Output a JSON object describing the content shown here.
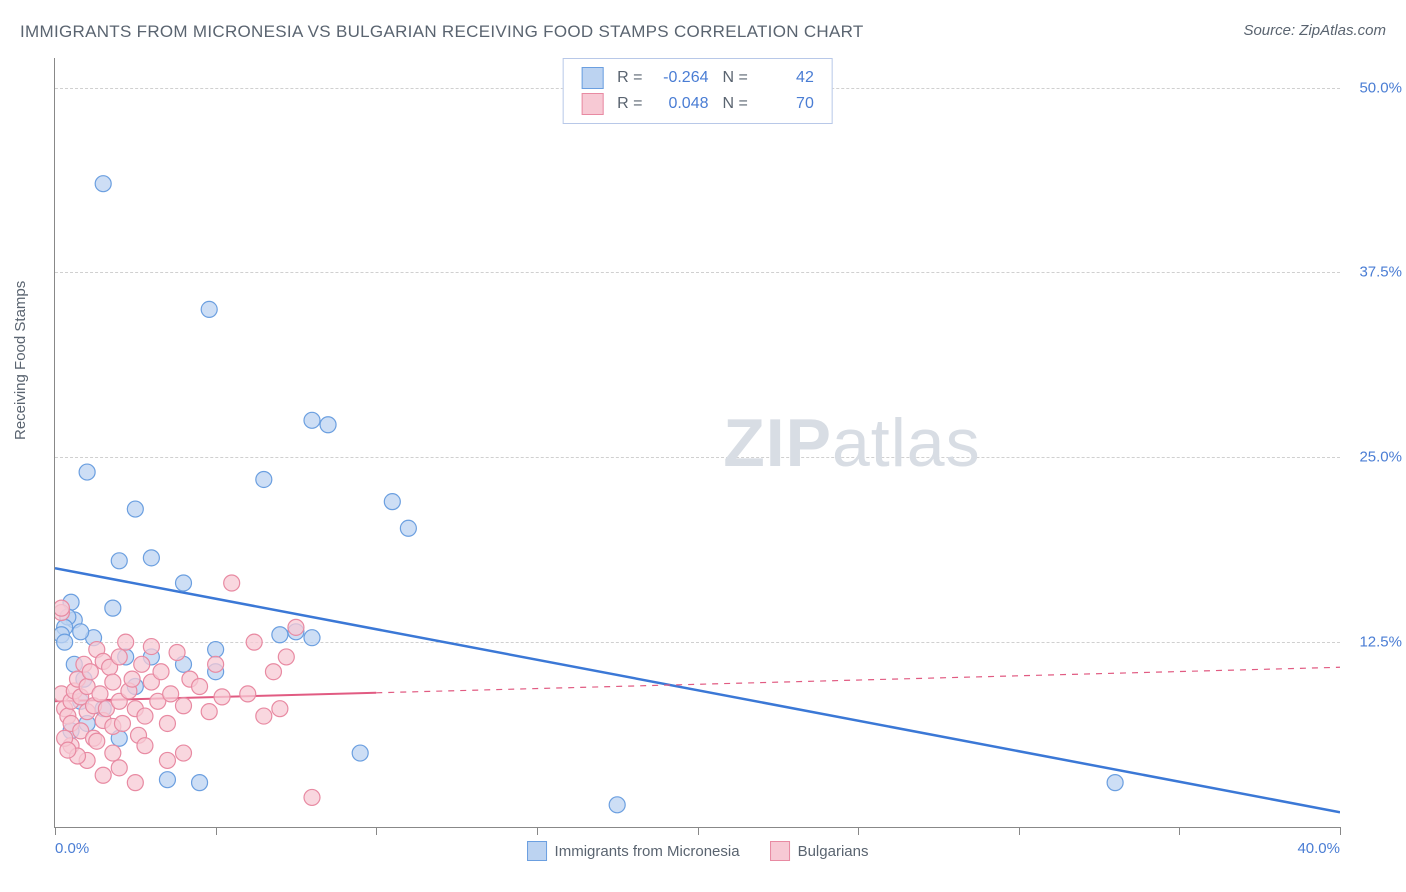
{
  "title": "IMMIGRANTS FROM MICRONESIA VS BULGARIAN RECEIVING FOOD STAMPS CORRELATION CHART",
  "source": "Source: ZipAtlas.com",
  "y_axis_label": "Receiving Food Stamps",
  "watermark": {
    "bold": "ZIP",
    "light": "atlas"
  },
  "chart": {
    "type": "scatter",
    "xlim": [
      0,
      40
    ],
    "ylim": [
      0,
      52
    ],
    "x_ticks": [
      0,
      5,
      10,
      15,
      20,
      25,
      30,
      35,
      40
    ],
    "x_tick_labels_shown": {
      "0": "0.0%",
      "40": "40.0%"
    },
    "y_gridlines": [
      12.5,
      25.0,
      37.5,
      50.0
    ],
    "y_tick_labels": [
      "12.5%",
      "25.0%",
      "37.5%",
      "50.0%"
    ],
    "background_color": "#ffffff",
    "grid_color": "#d0d0d0",
    "axis_color": "#888888",
    "tick_label_color": "#4a7dd4",
    "series": [
      {
        "name": "Immigrants from Micronesia",
        "color_fill": "#bcd3f1",
        "color_stroke": "#6b9fe0",
        "marker_radius": 8,
        "marker_opacity": 0.75,
        "R": "-0.264",
        "N": "42",
        "trend": {
          "x1": 0,
          "y1": 17.5,
          "x2": 40,
          "y2": 1.0,
          "solid_until_x": 40,
          "stroke_width": 2.5,
          "color": "#3b78d6"
        },
        "points": [
          [
            1.5,
            43.5
          ],
          [
            4.8,
            35.0
          ],
          [
            1.0,
            24.0
          ],
          [
            2.5,
            21.5
          ],
          [
            2.0,
            18.0
          ],
          [
            3.0,
            18.2
          ],
          [
            4.0,
            16.5
          ],
          [
            6.5,
            23.5
          ],
          [
            8.0,
            27.5
          ],
          [
            8.5,
            27.2
          ],
          [
            10.5,
            22.0
          ],
          [
            11.0,
            20.2
          ],
          [
            7.0,
            13.0
          ],
          [
            7.5,
            13.2
          ],
          [
            8.0,
            12.8
          ],
          [
            5.0,
            12.0
          ],
          [
            5.0,
            10.5
          ],
          [
            4.0,
            11.0
          ],
          [
            3.0,
            11.5
          ],
          [
            2.5,
            9.5
          ],
          [
            1.8,
            14.8
          ],
          [
            0.5,
            15.2
          ],
          [
            0.6,
            14.0
          ],
          [
            0.4,
            14.2
          ],
          [
            0.3,
            13.5
          ],
          [
            17.5,
            1.5
          ],
          [
            33.0,
            3.0
          ],
          [
            0.5,
            6.5
          ],
          [
            1.0,
            7.0
          ],
          [
            1.5,
            8.0
          ],
          [
            2.0,
            6.0
          ],
          [
            0.8,
            8.5
          ],
          [
            0.2,
            13.0
          ],
          [
            0.3,
            12.5
          ],
          [
            4.5,
            3.0
          ],
          [
            3.5,
            3.2
          ],
          [
            1.2,
            12.8
          ],
          [
            0.8,
            13.2
          ],
          [
            9.5,
            5.0
          ],
          [
            2.2,
            11.5
          ],
          [
            0.6,
            11.0
          ],
          [
            0.9,
            10.0
          ]
        ]
      },
      {
        "name": "Bulgarians",
        "color_fill": "#f7c9d4",
        "color_stroke": "#e88aa2",
        "marker_radius": 8,
        "marker_opacity": 0.75,
        "R": "0.048",
        "N": "70",
        "trend": {
          "x1": 0,
          "y1": 8.5,
          "x2": 40,
          "y2": 10.8,
          "solid_until_x": 10,
          "stroke_width": 2,
          "color": "#e15b82"
        },
        "points": [
          [
            0.2,
            9.0
          ],
          [
            0.3,
            8.0
          ],
          [
            0.4,
            7.5
          ],
          [
            0.5,
            8.5
          ],
          [
            0.5,
            7.0
          ],
          [
            0.6,
            9.2
          ],
          [
            0.7,
            10.0
          ],
          [
            0.8,
            8.8
          ],
          [
            0.8,
            6.5
          ],
          [
            0.9,
            11.0
          ],
          [
            1.0,
            9.5
          ],
          [
            1.0,
            7.8
          ],
          [
            1.1,
            10.5
          ],
          [
            1.2,
            8.2
          ],
          [
            1.2,
            6.0
          ],
          [
            1.3,
            12.0
          ],
          [
            1.4,
            9.0
          ],
          [
            1.5,
            11.2
          ],
          [
            1.5,
            7.2
          ],
          [
            1.6,
            8.0
          ],
          [
            1.7,
            10.8
          ],
          [
            1.8,
            9.8
          ],
          [
            1.8,
            6.8
          ],
          [
            2.0,
            11.5
          ],
          [
            2.0,
            8.5
          ],
          [
            2.1,
            7.0
          ],
          [
            2.2,
            12.5
          ],
          [
            2.3,
            9.2
          ],
          [
            2.4,
            10.0
          ],
          [
            2.5,
            8.0
          ],
          [
            2.6,
            6.2
          ],
          [
            2.7,
            11.0
          ],
          [
            2.8,
            7.5
          ],
          [
            3.0,
            9.8
          ],
          [
            3.0,
            12.2
          ],
          [
            3.2,
            8.5
          ],
          [
            3.3,
            10.5
          ],
          [
            3.5,
            7.0
          ],
          [
            3.6,
            9.0
          ],
          [
            3.8,
            11.8
          ],
          [
            4.0,
            8.2
          ],
          [
            4.2,
            10.0
          ],
          [
            4.5,
            9.5
          ],
          [
            4.8,
            7.8
          ],
          [
            5.0,
            11.0
          ],
          [
            5.2,
            8.8
          ],
          [
            5.5,
            16.5
          ],
          [
            6.0,
            9.0
          ],
          [
            6.2,
            12.5
          ],
          [
            6.5,
            7.5
          ],
          [
            6.8,
            10.5
          ],
          [
            7.0,
            8.0
          ],
          [
            7.5,
            13.5
          ],
          [
            1.0,
            4.5
          ],
          [
            1.5,
            3.5
          ],
          [
            2.0,
            4.0
          ],
          [
            2.5,
            3.0
          ],
          [
            1.8,
            5.0
          ],
          [
            0.5,
            5.5
          ],
          [
            0.7,
            4.8
          ],
          [
            3.5,
            4.5
          ],
          [
            4.0,
            5.0
          ],
          [
            0.2,
            14.5
          ],
          [
            0.2,
            14.8
          ],
          [
            7.2,
            11.5
          ],
          [
            8.0,
            2.0
          ],
          [
            0.3,
            6.0
          ],
          [
            0.4,
            5.2
          ],
          [
            1.3,
            5.8
          ],
          [
            2.8,
            5.5
          ]
        ]
      }
    ]
  },
  "legend_bottom": [
    {
      "label": "Immigrants from Micronesia",
      "fill": "#bcd3f1",
      "stroke": "#6b9fe0"
    },
    {
      "label": "Bulgarians",
      "fill": "#f7c9d4",
      "stroke": "#e88aa2"
    }
  ]
}
